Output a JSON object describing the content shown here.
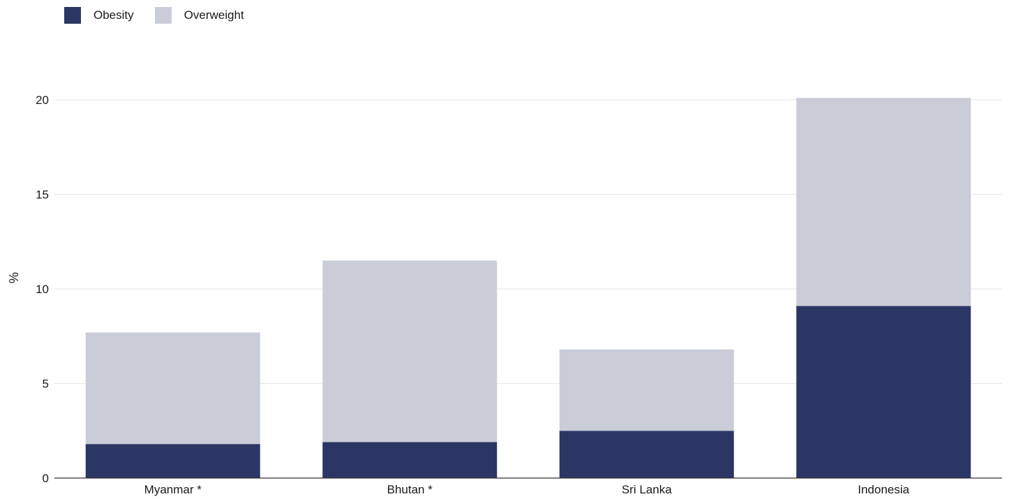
{
  "chart_data": {
    "type": "bar",
    "stacked": true,
    "categories": [
      "Myanmar *",
      "Bhutan *",
      "Sri Lanka",
      "Indonesia"
    ],
    "series": [
      {
        "name": "Obesity",
        "color": "#2b3665",
        "values": [
          1.8,
          1.9,
          2.5,
          9.1
        ]
      },
      {
        "name": "Overweight",
        "color": "#cacdd8",
        "values": [
          5.9,
          9.6,
          4.3,
          11.0
        ]
      }
    ],
    "title": "",
    "xlabel": "",
    "ylabel": "%",
    "ylim": [
      0,
      20
    ],
    "yticks": [
      "0",
      "5",
      "10",
      "15",
      "20"
    ],
    "grid": true,
    "legend_position": "top-left"
  }
}
